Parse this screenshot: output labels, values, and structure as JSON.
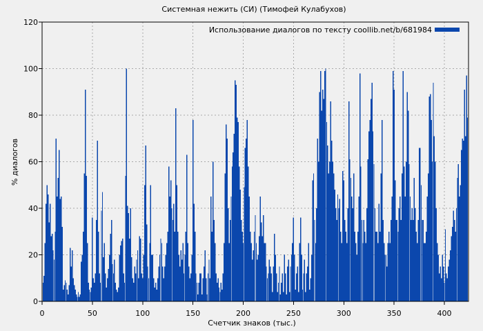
{
  "colors": {
    "background": "#f0f0f0",
    "bar": "#0b47ad",
    "grid": "#a9a9a9",
    "axis": "#000000",
    "text": "#000000"
  },
  "chart_data": {
    "type": "bar",
    "style": "impulses",
    "title": "Системная нежить (СИ) (Тимофей Кулабухов)",
    "legend": "Использование диалогов по тексту coollib.net/b/681984",
    "legend_position": "top-right",
    "xlabel": "Счетчик знаков (тыс.)",
    "ylabel": "% диалогов",
    "xlim": [
      0,
      424
    ],
    "ylim": [
      0,
      120
    ],
    "xticks": [
      0,
      50,
      100,
      150,
      200,
      250,
      300,
      350,
      400
    ],
    "yticks": [
      0,
      20,
      40,
      60,
      80,
      100,
      120
    ],
    "grid": true,
    "bar_color": "#0b47ad",
    "x_start": 0,
    "x_step": 1,
    "values": [
      2,
      8,
      11,
      25,
      42,
      50,
      46,
      34,
      42,
      28,
      29,
      22,
      18,
      30,
      70,
      45,
      53,
      65,
      44,
      45,
      32,
      5,
      7,
      9,
      8,
      5,
      3,
      7,
      23,
      15,
      22,
      10,
      7,
      5,
      3,
      2,
      4,
      2,
      3,
      17,
      20,
      30,
      55,
      91,
      54,
      25,
      8,
      5,
      4,
      6,
      36,
      10,
      8,
      12,
      35,
      69,
      30,
      12,
      8,
      39,
      47,
      19,
      25,
      12,
      6,
      10,
      14,
      20,
      29,
      35,
      16,
      12,
      18,
      8,
      5,
      4,
      6,
      20,
      24,
      26,
      27,
      12,
      8,
      54,
      100,
      41,
      38,
      27,
      40,
      19,
      10,
      8,
      15,
      12,
      18,
      22,
      10,
      28,
      27,
      12,
      10,
      20,
      50,
      67,
      33,
      15,
      10,
      25,
      50,
      20,
      20,
      10,
      6,
      8,
      5,
      10,
      15,
      20,
      27,
      25,
      15,
      10,
      15,
      20,
      25,
      30,
      58,
      45,
      52,
      40,
      35,
      42,
      30,
      83,
      50,
      30,
      20,
      15,
      22,
      18,
      25,
      12,
      20,
      30,
      63,
      25,
      15,
      10,
      12,
      20,
      78,
      42,
      30,
      12,
      8,
      3,
      8,
      12,
      12,
      3,
      10,
      15,
      22,
      10,
      3,
      12,
      18,
      10,
      45,
      30,
      60,
      35,
      25,
      12,
      8,
      10,
      6,
      4,
      8,
      5,
      12,
      25,
      55,
      76,
      70,
      40,
      25,
      35,
      45,
      58,
      64,
      72,
      95,
      93,
      79,
      77,
      58,
      48,
      35,
      30,
      25,
      49,
      66,
      70,
      78,
      58,
      45,
      30,
      25,
      18,
      22,
      30,
      37,
      25,
      18,
      20,
      28,
      45,
      34,
      28,
      37,
      25,
      25,
      15,
      10,
      12,
      18,
      15,
      12,
      4,
      15,
      29,
      20,
      12,
      4,
      8,
      15,
      3,
      8,
      12,
      4,
      20,
      12,
      3,
      15,
      18,
      4,
      15,
      20,
      25,
      36,
      20,
      5,
      12,
      15,
      4,
      25,
      36,
      20,
      5,
      12,
      18,
      4,
      12,
      15,
      25,
      5,
      10,
      20,
      52,
      55,
      35,
      25,
      40,
      70,
      60,
      90,
      99,
      82,
      91,
      87,
      99,
      100,
      77,
      67,
      55,
      60,
      86,
      69,
      60,
      55,
      48,
      40,
      35,
      46,
      40,
      44,
      30,
      25,
      56,
      52,
      35,
      30,
      25,
      40,
      86,
      61,
      53,
      45,
      40,
      55,
      30,
      25,
      20,
      30,
      45,
      98,
      58,
      35,
      25,
      35,
      30,
      25,
      40,
      61,
      73,
      78,
      87,
      94,
      73,
      59,
      40,
      30,
      30,
      25,
      42,
      30,
      55,
      78,
      35,
      25,
      20,
      20,
      15,
      25,
      30,
      25,
      35,
      45,
      99,
      91,
      52,
      35,
      35,
      30,
      40,
      45,
      35,
      55,
      99,
      58,
      45,
      60,
      90,
      82,
      59,
      45,
      35,
      40,
      35,
      53,
      40,
      30,
      25,
      35,
      66,
      66,
      50,
      35,
      35,
      25,
      25,
      30,
      45,
      55,
      88,
      89,
      78,
      60,
      94,
      71,
      60,
      40,
      25,
      20,
      12,
      15,
      10,
      20,
      15,
      8,
      31,
      12,
      10,
      15,
      18,
      22,
      28,
      32,
      39,
      35,
      30,
      40,
      53,
      59,
      45,
      50,
      65,
      70,
      69,
      91,
      71,
      97,
      79,
      65
    ]
  }
}
